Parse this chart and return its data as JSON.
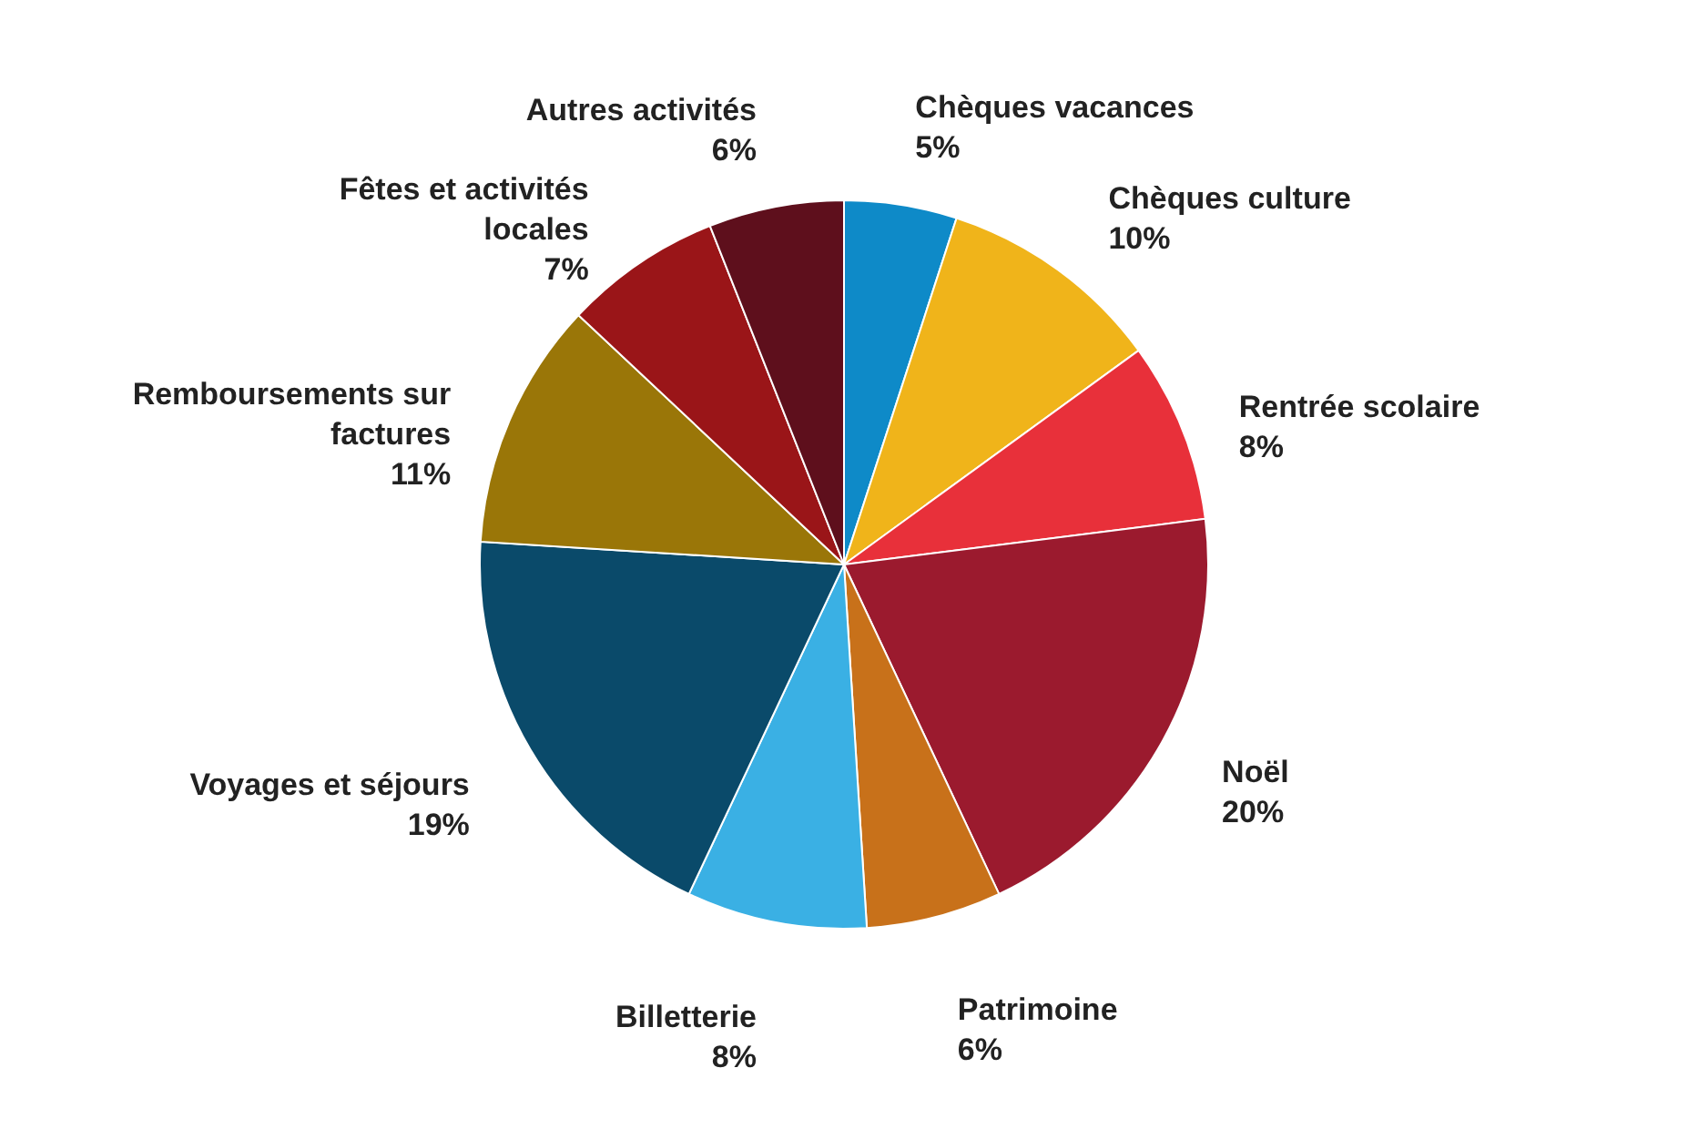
{
  "chart_data": {
    "type": "pie",
    "categories": [
      "Chèques vacances",
      "Chèques culture",
      "Rentrée scolaire",
      "Noël",
      "Patrimoine",
      "Billetterie",
      "Voyages et séjours",
      "Remboursements sur factures",
      "Fêtes et activités locales",
      "Autres activités"
    ],
    "values": [
      5,
      10,
      8,
      20,
      6,
      8,
      19,
      11,
      7,
      6
    ],
    "value_labels": [
      "5%",
      "10%",
      "8%",
      "20%",
      "6%",
      "8%",
      "19%",
      "11%",
      "7%",
      "6%"
    ],
    "colors": [
      "#0e8ac8",
      "#f0b41a",
      "#e8303a",
      "#9b1a2e",
      "#c8711a",
      "#3ab0e4",
      "#0a4a6a",
      "#9a7608",
      "#9a1518",
      "#5e0f1c"
    ]
  }
}
